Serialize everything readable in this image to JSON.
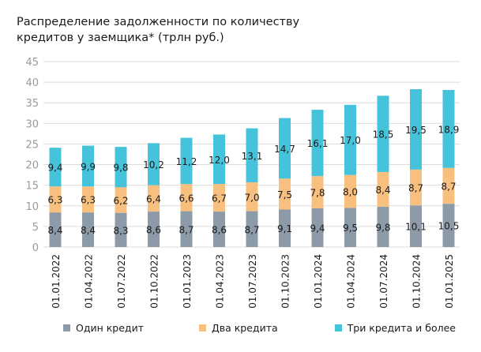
{
  "chart_data": {
    "type": "bar",
    "stacked": true,
    "title": "Распределение задолженности по количеству кредитов у заемщика* (трлн руб.)",
    "xlabel": "",
    "ylabel": "",
    "ylim": [
      0,
      45
    ],
    "yticks": [
      0,
      5,
      10,
      15,
      20,
      25,
      30,
      35,
      40,
      45
    ],
    "grid": true,
    "legend_position": "bottom",
    "categories": [
      "01.01.2022",
      "01.04.2022",
      "01.07.2022",
      "01.10.2022",
      "01.01.2023",
      "01.04.2023",
      "01.07.2023",
      "01.10.2023",
      "01.01.2024",
      "01.04.2024",
      "01.07.2024",
      "01.10.2024",
      "01.01.2025"
    ],
    "series": [
      {
        "name": "Один кредит",
        "color": "#8c9ba7",
        "values": [
          8.4,
          8.4,
          8.3,
          8.6,
          8.7,
          8.6,
          8.7,
          9.1,
          9.4,
          9.5,
          9.8,
          10.1,
          10.5
        ],
        "labels": [
          "8,4",
          "8,4",
          "8,3",
          "8,6",
          "8,7",
          "8,6",
          "8,7",
          "9,1",
          "9,4",
          "9,5",
          "9,8",
          "10,1",
          "10,5"
        ]
      },
      {
        "name": "Два кредита",
        "color": "#f8c07f",
        "values": [
          6.3,
          6.3,
          6.2,
          6.4,
          6.6,
          6.7,
          7.0,
          7.5,
          7.8,
          8.0,
          8.4,
          8.7,
          8.7
        ],
        "labels": [
          "6,3",
          "6,3",
          "6,2",
          "6,4",
          "6,6",
          "6,7",
          "7,0",
          "7,5",
          "7,8",
          "8,0",
          "8,4",
          "8,7",
          "8,7"
        ]
      },
      {
        "name": "Три кредита и более",
        "color": "#45c3da",
        "values": [
          9.4,
          9.9,
          9.8,
          10.2,
          11.2,
          12.0,
          13.1,
          14.7,
          16.1,
          17.0,
          18.5,
          19.5,
          18.9
        ],
        "labels": [
          "9,4",
          "9,9",
          "9,8",
          "10,2",
          "11,2",
          "12,0",
          "13,1",
          "14,7",
          "16,1",
          "17,0",
          "18,5",
          "19,5",
          "18,9"
        ]
      }
    ]
  }
}
